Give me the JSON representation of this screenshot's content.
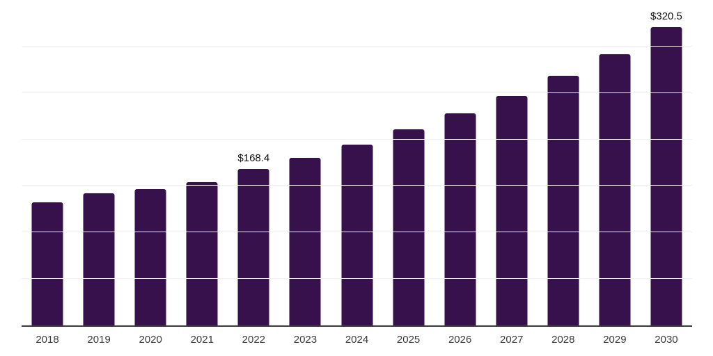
{
  "chart_data": {
    "type": "bar",
    "title": "",
    "xlabel": "",
    "ylabel": "",
    "categories": [
      "2018",
      "2019",
      "2020",
      "2021",
      "2022",
      "2023",
      "2024",
      "2025",
      "2026",
      "2027",
      "2028",
      "2029",
      "2030"
    ],
    "values": [
      132.6,
      142.2,
      146.7,
      153.8,
      168.4,
      180.6,
      194.4,
      210.7,
      227.9,
      246.5,
      268.8,
      291.9,
      320.5
    ],
    "data_labels": [
      "",
      "",
      "",
      "",
      "$168.4",
      "",
      "",
      "",
      "",
      "",
      "",
      "",
      "$320.5"
    ],
    "ylim": [
      0,
      350
    ],
    "grid_step": 50,
    "grid": "horizontal, unlabeled",
    "legend_position": "none",
    "colors": {
      "bar": "#36114B",
      "gridline": "#F1F0F3",
      "axis_line": "#3A3A3A",
      "tick_label": "#3A3A3A",
      "data_label": "#111111",
      "background": "#FFFFFF"
    }
  }
}
